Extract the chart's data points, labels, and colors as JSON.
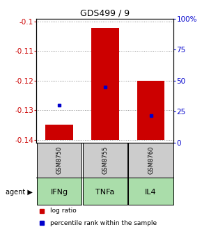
{
  "title": "GDS499 / 9",
  "samples": [
    "GSM8750",
    "GSM8755",
    "GSM8760"
  ],
  "agents": [
    "IFNg",
    "TNFa",
    "IL4"
  ],
  "log_ratios": [
    -0.135,
    -0.102,
    -0.12
  ],
  "log_ratio_bottoms": [
    -0.14,
    -0.14,
    -0.14
  ],
  "percentile_ranks": [
    30,
    45,
    22
  ],
  "ylim_left": [
    -0.141,
    -0.099
  ],
  "yticks_left": [
    -0.14,
    -0.13,
    -0.12,
    -0.11,
    -0.1
  ],
  "yticks_right": [
    0,
    25,
    50,
    75,
    100
  ],
  "ytick_labels_left": [
    "-0.14",
    "-0.13",
    "-0.12",
    "-0.11",
    "-0.1"
  ],
  "ytick_labels_right": [
    "0",
    "25",
    "50",
    "75",
    "100%"
  ],
  "bar_color": "#cc0000",
  "dot_color": "#0000cc",
  "agent_box_color": "#aaddaa",
  "sample_box_color": "#cccccc",
  "grid_color": "#888888",
  "left_label_color": "#cc0000",
  "right_label_color": "#0000cc",
  "legend_labels": [
    "log ratio",
    "percentile rank within the sample"
  ]
}
